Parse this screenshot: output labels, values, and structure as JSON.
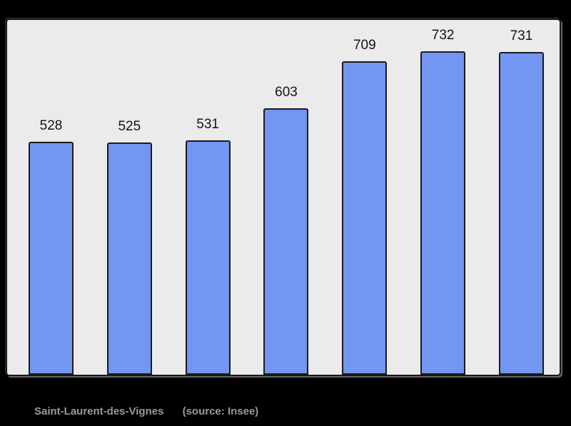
{
  "chart_data": {
    "type": "bar",
    "values": [
      528,
      525,
      531,
      603,
      709,
      732,
      731
    ],
    "data_labels": [
      "528",
      "525",
      "531",
      "603",
      "709",
      "732",
      "731"
    ],
    "title": "",
    "xlabel": "",
    "ylabel": "",
    "ylim": [
      0,
      732
    ],
    "grid": false,
    "legend": false,
    "bar_color": "#7296f2",
    "bar_border_color": "#1b1b1b",
    "plot_background": "#ebebeb",
    "page_background": "#000000",
    "label_color": "#141414"
  },
  "caption": {
    "commune": "Saint-Laurent-des-Vignes",
    "source": "(source: Insee)",
    "text_color": "#999999"
  }
}
